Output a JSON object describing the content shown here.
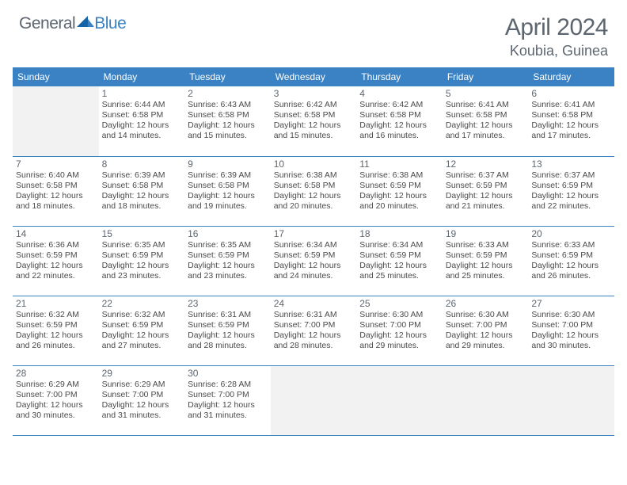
{
  "logo": {
    "text1": "General",
    "text2": "Blue",
    "icon_color": "#1664a5"
  },
  "header": {
    "month_year": "April 2024",
    "location": "Koubia, Guinea"
  },
  "colors": {
    "header_bg": "#3b82c4",
    "header_text": "#ffffff",
    "border": "#3b82c4",
    "daynum": "#5d6670",
    "bodytext": "#4a4a4a",
    "empty_bg": "#f2f2f2",
    "page_bg": "#ffffff"
  },
  "daynames": [
    "Sunday",
    "Monday",
    "Tuesday",
    "Wednesday",
    "Thursday",
    "Friday",
    "Saturday"
  ],
  "weeks": [
    [
      {
        "empty": true
      },
      {
        "n": "1",
        "sr": "6:44 AM",
        "ss": "6:58 PM",
        "dl": "12 hours and 14 minutes."
      },
      {
        "n": "2",
        "sr": "6:43 AM",
        "ss": "6:58 PM",
        "dl": "12 hours and 15 minutes."
      },
      {
        "n": "3",
        "sr": "6:42 AM",
        "ss": "6:58 PM",
        "dl": "12 hours and 15 minutes."
      },
      {
        "n": "4",
        "sr": "6:42 AM",
        "ss": "6:58 PM",
        "dl": "12 hours and 16 minutes."
      },
      {
        "n": "5",
        "sr": "6:41 AM",
        "ss": "6:58 PM",
        "dl": "12 hours and 17 minutes."
      },
      {
        "n": "6",
        "sr": "6:41 AM",
        "ss": "6:58 PM",
        "dl": "12 hours and 17 minutes."
      }
    ],
    [
      {
        "n": "7",
        "sr": "6:40 AM",
        "ss": "6:58 PM",
        "dl": "12 hours and 18 minutes."
      },
      {
        "n": "8",
        "sr": "6:39 AM",
        "ss": "6:58 PM",
        "dl": "12 hours and 18 minutes."
      },
      {
        "n": "9",
        "sr": "6:39 AM",
        "ss": "6:58 PM",
        "dl": "12 hours and 19 minutes."
      },
      {
        "n": "10",
        "sr": "6:38 AM",
        "ss": "6:58 PM",
        "dl": "12 hours and 20 minutes."
      },
      {
        "n": "11",
        "sr": "6:38 AM",
        "ss": "6:59 PM",
        "dl": "12 hours and 20 minutes."
      },
      {
        "n": "12",
        "sr": "6:37 AM",
        "ss": "6:59 PM",
        "dl": "12 hours and 21 minutes."
      },
      {
        "n": "13",
        "sr": "6:37 AM",
        "ss": "6:59 PM",
        "dl": "12 hours and 22 minutes."
      }
    ],
    [
      {
        "n": "14",
        "sr": "6:36 AM",
        "ss": "6:59 PM",
        "dl": "12 hours and 22 minutes."
      },
      {
        "n": "15",
        "sr": "6:35 AM",
        "ss": "6:59 PM",
        "dl": "12 hours and 23 minutes."
      },
      {
        "n": "16",
        "sr": "6:35 AM",
        "ss": "6:59 PM",
        "dl": "12 hours and 23 minutes."
      },
      {
        "n": "17",
        "sr": "6:34 AM",
        "ss": "6:59 PM",
        "dl": "12 hours and 24 minutes."
      },
      {
        "n": "18",
        "sr": "6:34 AM",
        "ss": "6:59 PM",
        "dl": "12 hours and 25 minutes."
      },
      {
        "n": "19",
        "sr": "6:33 AM",
        "ss": "6:59 PM",
        "dl": "12 hours and 25 minutes."
      },
      {
        "n": "20",
        "sr": "6:33 AM",
        "ss": "6:59 PM",
        "dl": "12 hours and 26 minutes."
      }
    ],
    [
      {
        "n": "21",
        "sr": "6:32 AM",
        "ss": "6:59 PM",
        "dl": "12 hours and 26 minutes."
      },
      {
        "n": "22",
        "sr": "6:32 AM",
        "ss": "6:59 PM",
        "dl": "12 hours and 27 minutes."
      },
      {
        "n": "23",
        "sr": "6:31 AM",
        "ss": "6:59 PM",
        "dl": "12 hours and 28 minutes."
      },
      {
        "n": "24",
        "sr": "6:31 AM",
        "ss": "7:00 PM",
        "dl": "12 hours and 28 minutes."
      },
      {
        "n": "25",
        "sr": "6:30 AM",
        "ss": "7:00 PM",
        "dl": "12 hours and 29 minutes."
      },
      {
        "n": "26",
        "sr": "6:30 AM",
        "ss": "7:00 PM",
        "dl": "12 hours and 29 minutes."
      },
      {
        "n": "27",
        "sr": "6:30 AM",
        "ss": "7:00 PM",
        "dl": "12 hours and 30 minutes."
      }
    ],
    [
      {
        "n": "28",
        "sr": "6:29 AM",
        "ss": "7:00 PM",
        "dl": "12 hours and 30 minutes."
      },
      {
        "n": "29",
        "sr": "6:29 AM",
        "ss": "7:00 PM",
        "dl": "12 hours and 31 minutes."
      },
      {
        "n": "30",
        "sr": "6:28 AM",
        "ss": "7:00 PM",
        "dl": "12 hours and 31 minutes."
      },
      {
        "empty": true
      },
      {
        "empty": true
      },
      {
        "empty": true
      },
      {
        "empty": true
      }
    ]
  ],
  "labels": {
    "sunrise": "Sunrise:",
    "sunset": "Sunset:",
    "daylight": "Daylight:"
  }
}
